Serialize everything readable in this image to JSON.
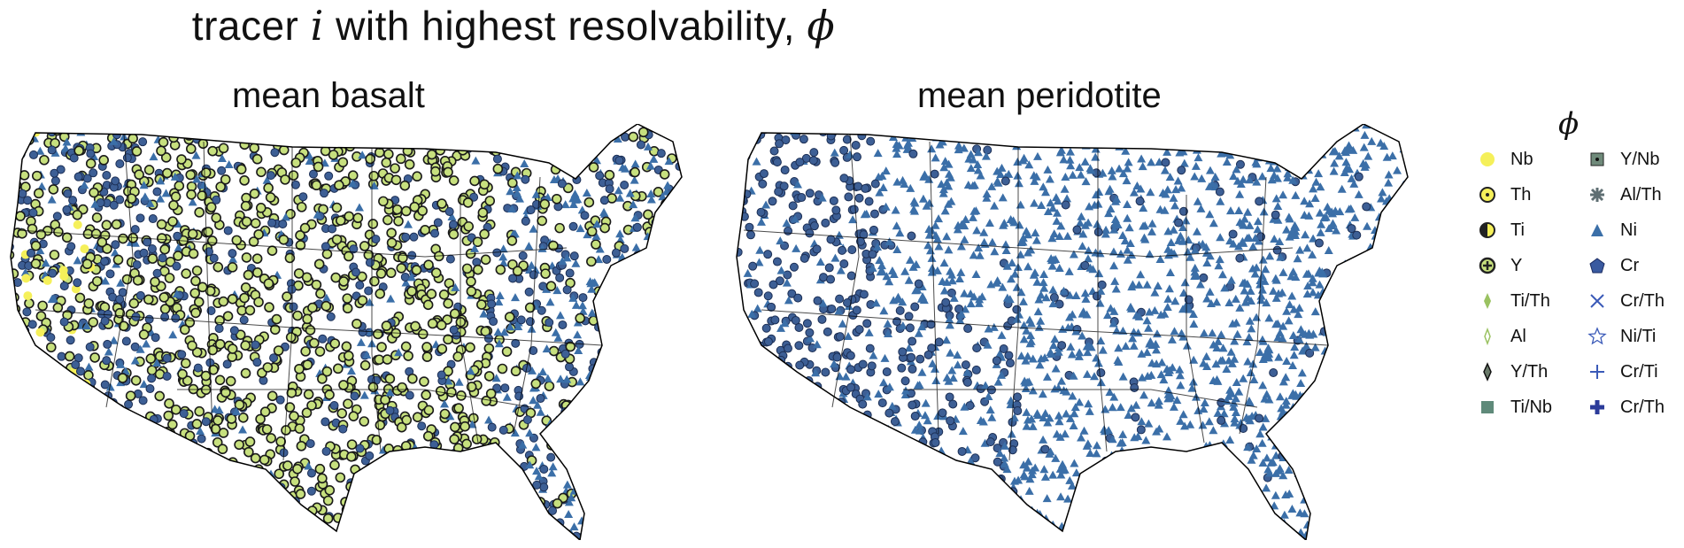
{
  "title": {
    "prefix": "tracer",
    "italic": "i",
    "middle": "with highest resolvability,",
    "symbol": "ϕ"
  },
  "panels": [
    {
      "title": "mean basalt"
    },
    {
      "title": "mean peridotite"
    }
  ],
  "legend": {
    "title": "ϕ",
    "items": [
      {
        "label": "Nb",
        "icon": "circle-filled-yellow"
      },
      {
        "label": "Th",
        "icon": "circle-dot"
      },
      {
        "label": "Ti",
        "icon": "circle-half"
      },
      {
        "label": "Y",
        "icon": "circle-plus"
      },
      {
        "label": "Ti/Th",
        "icon": "diamond-green"
      },
      {
        "label": "Al",
        "icon": "diamond-outline"
      },
      {
        "label": "Y/Th",
        "icon": "diamond-dark"
      },
      {
        "label": "Ti/Nb",
        "icon": "square-teal"
      },
      {
        "label": "Y/Nb",
        "icon": "square-dot"
      },
      {
        "label": "Al/Th",
        "icon": "asterisk"
      },
      {
        "label": "Ni",
        "icon": "triangle-blue"
      },
      {
        "label": "Cr",
        "icon": "pentagon-blue"
      },
      {
        "label": "Cr/Th",
        "icon": "x-mark"
      },
      {
        "label": "Ni/Ti",
        "icon": "star-outline"
      },
      {
        "label": "Cr/Ti",
        "icon": "plus-thin"
      },
      {
        "label": "Cr/Th",
        "icon": "plus-bold"
      }
    ],
    "colors": {
      "yellow": "#f5f05a",
      "green": "#c7e07e",
      "blue": "#3b6fa8",
      "teal": "#5f8a7a",
      "navy": "#2b3b9a"
    }
  }
}
